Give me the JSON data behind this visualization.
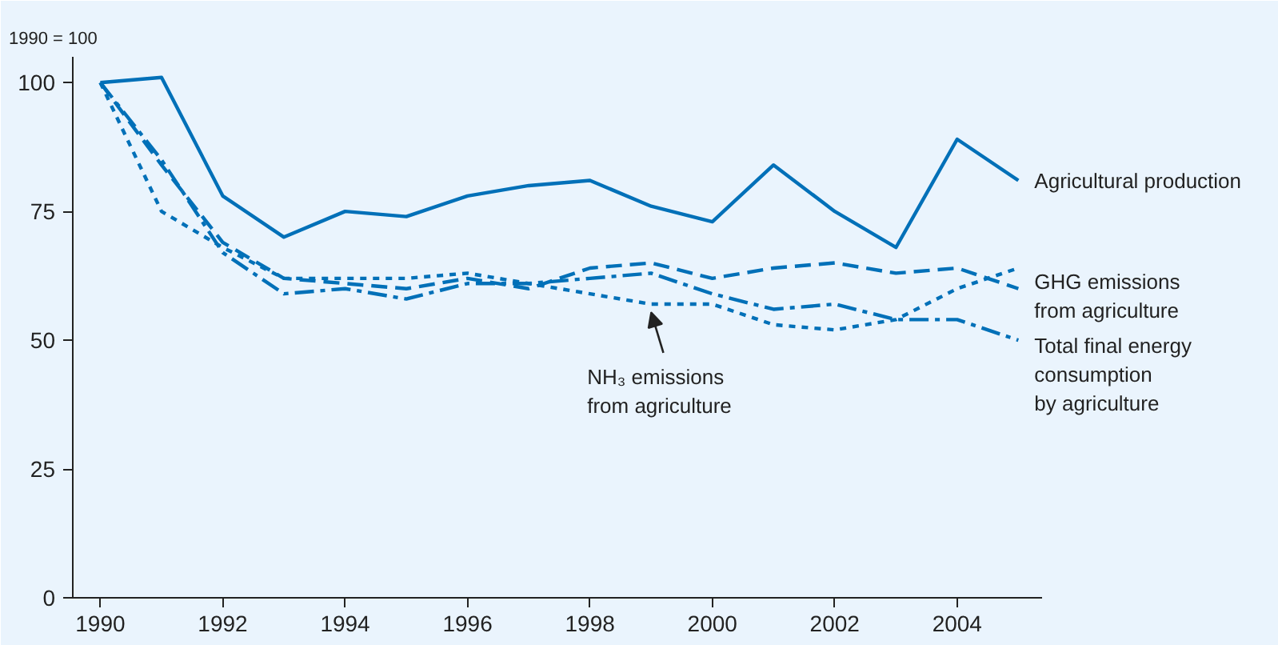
{
  "chart_data": {
    "type": "line",
    "ylabel": "1990 = 100",
    "x": [
      1990,
      1991,
      1992,
      1993,
      1994,
      1995,
      1996,
      1997,
      1998,
      1999,
      2000,
      2001,
      2002,
      2003,
      2004,
      2005
    ],
    "series": [
      {
        "name": "Agricultural production",
        "color": "#0070b8",
        "line_style": "solid",
        "values": [
          100,
          101,
          78,
          70,
          75,
          74,
          78,
          80,
          81,
          76,
          73,
          84,
          75,
          68,
          89,
          81
        ]
      },
      {
        "name": "GHG emissions\nfrom agriculture",
        "color": "#0070b8",
        "line_style": "dashed",
        "values": [
          100,
          84,
          69,
          62,
          61,
          60,
          62,
          60,
          64,
          65,
          62,
          64,
          65,
          63,
          64,
          60
        ]
      },
      {
        "name": "Total final energy\nconsumption\nby agriculture",
        "color": "#0070b8",
        "line_style": "dashdot",
        "values": [
          100,
          85,
          67,
          59,
          60,
          58,
          61,
          61,
          62,
          63,
          59,
          56,
          57,
          54,
          54,
          50
        ]
      },
      {
        "name": "NH₃ emissions\nfrom agriculture",
        "color": "#0070b8",
        "line_style": "dotted",
        "values": [
          100,
          75,
          68,
          62,
          62,
          62,
          63,
          61,
          59,
          57,
          57,
          53,
          52,
          54,
          60,
          64
        ]
      }
    ],
    "xlim": [
      1989.55,
      2005.4
    ],
    "ylim": [
      0,
      105
    ],
    "xticks": [
      1990,
      1992,
      1994,
      1996,
      1998,
      2000,
      2002,
      2004
    ],
    "yticks": [
      0,
      25,
      50,
      75,
      100
    ],
    "grid": false,
    "legend": false,
    "marker": "none"
  }
}
